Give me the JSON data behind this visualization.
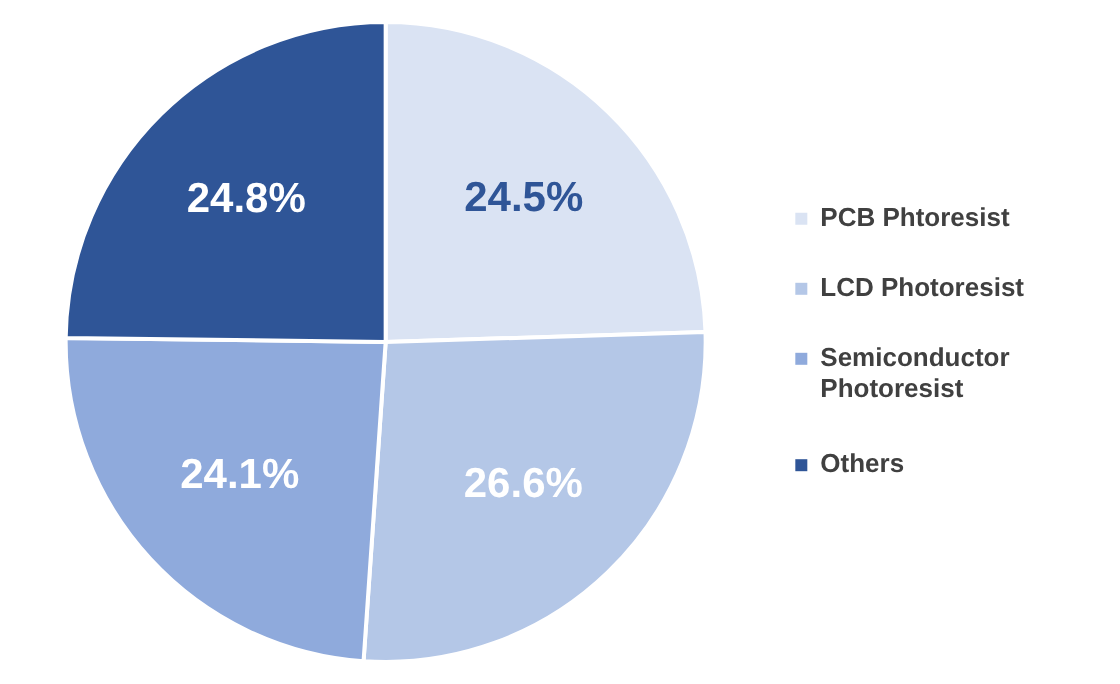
{
  "chart_data": {
    "type": "pie",
    "categories": [
      "PCB Phtoresist",
      "LCD Photoresist",
      "Semiconductor Photoresist",
      "Others"
    ],
    "values": [
      24.5,
      26.6,
      24.1,
      24.8
    ],
    "colors": [
      "#dae3f3",
      "#b4c7e7",
      "#8faadc",
      "#2f5597"
    ],
    "value_labels": [
      "24.5%",
      "26.6%",
      "24.1%",
      "24.8%"
    ],
    "legend": "right"
  }
}
